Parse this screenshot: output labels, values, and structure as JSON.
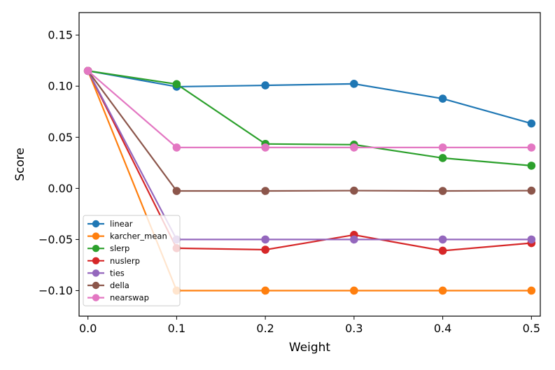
{
  "chart_data": {
    "type": "line",
    "title": "",
    "xlabel": "Weight",
    "ylabel": "Score",
    "xlim": [
      -0.01,
      0.51
    ],
    "ylim": [
      -0.125,
      0.172
    ],
    "xticks": [
      0.0,
      0.1,
      0.2,
      0.3,
      0.4,
      0.5
    ],
    "xtick_labels": [
      "0.0",
      "0.1",
      "0.2",
      "0.3",
      "0.4",
      "0.5"
    ],
    "yticks": [
      -0.1,
      -0.05,
      0.0,
      0.05,
      0.1,
      0.15
    ],
    "ytick_labels": [
      "−0.10",
      "−0.05",
      "0.00",
      "0.05",
      "0.10",
      "0.15"
    ],
    "grid": false,
    "legend_position": "lower-left",
    "x": [
      0.0,
      0.1,
      0.2,
      0.3,
      0.4,
      0.5
    ],
    "series": [
      {
        "name": "linear",
        "color": "#1f77b4",
        "values": [
          0.115,
          0.0995,
          0.1008,
          0.1023,
          0.0878,
          0.0635
        ]
      },
      {
        "name": "karcher_mean",
        "color": "#ff7f0e",
        "values": [
          0.115,
          -0.1,
          -0.1,
          -0.1,
          -0.1,
          -0.1
        ]
      },
      {
        "name": "slerp",
        "color": "#2ca02c",
        "values": [
          0.115,
          0.102,
          0.0435,
          0.0428,
          0.0297,
          0.0222
        ]
      },
      {
        "name": "nuslerp",
        "color": "#d62728",
        "values": [
          0.115,
          -0.0585,
          -0.06,
          -0.0455,
          -0.061,
          -0.0535
        ]
      },
      {
        "name": "ties",
        "color": "#9467bd",
        "values": [
          0.115,
          -0.05,
          -0.05,
          -0.05,
          -0.05,
          -0.05
        ]
      },
      {
        "name": "della",
        "color": "#8c564b",
        "values": [
          0.115,
          -0.0025,
          -0.0025,
          -0.0022,
          -0.0025,
          -0.0022
        ]
      },
      {
        "name": "nearswap",
        "color": "#e377c2",
        "values": [
          0.115,
          0.04,
          0.04,
          0.04,
          0.04,
          0.04
        ]
      }
    ]
  }
}
